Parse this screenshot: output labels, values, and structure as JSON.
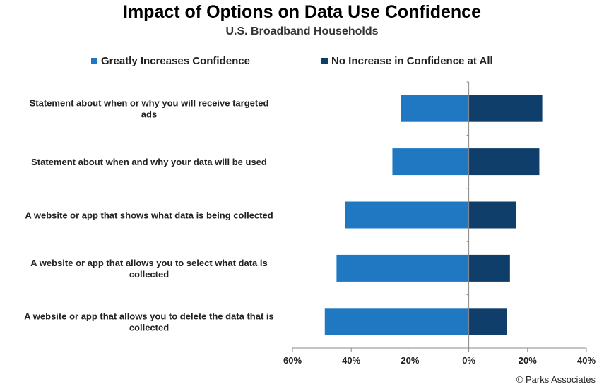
{
  "chart_data": {
    "type": "bar",
    "orientation": "horizontal-diverging",
    "title": "Impact of Options on Data Use Confidence",
    "subtitle": "U.S. Broadband Households",
    "categories": [
      [
        "Statement about when or why you will receive targeted",
        "ads"
      ],
      [
        "Statement about when and why your data will be used"
      ],
      [
        "A website or app that shows what data is being collected"
      ],
      [
        "A website or app that allows you to select what data is",
        "collected"
      ],
      [
        "A website or app that allows you to delete the data that is",
        "collected"
      ]
    ],
    "series": [
      {
        "name": "Greatly Increases Confidence",
        "direction": "negative",
        "color": "#1f78c1",
        "values": [
          23,
          26,
          42,
          45,
          49
        ]
      },
      {
        "name": "No Increase in Confidence at All",
        "direction": "positive",
        "color": "#0f3e6b",
        "values": [
          25,
          24,
          16,
          14,
          13
        ]
      }
    ],
    "xlim": [
      -60,
      40
    ],
    "xticks": [
      -60,
      -40,
      -20,
      0,
      20,
      40
    ],
    "xtick_labels": [
      "60%",
      "40%",
      "20%",
      "0%",
      "20%",
      "40%"
    ],
    "grid": false,
    "legend": "top"
  },
  "copyright": "© Parks Associates"
}
